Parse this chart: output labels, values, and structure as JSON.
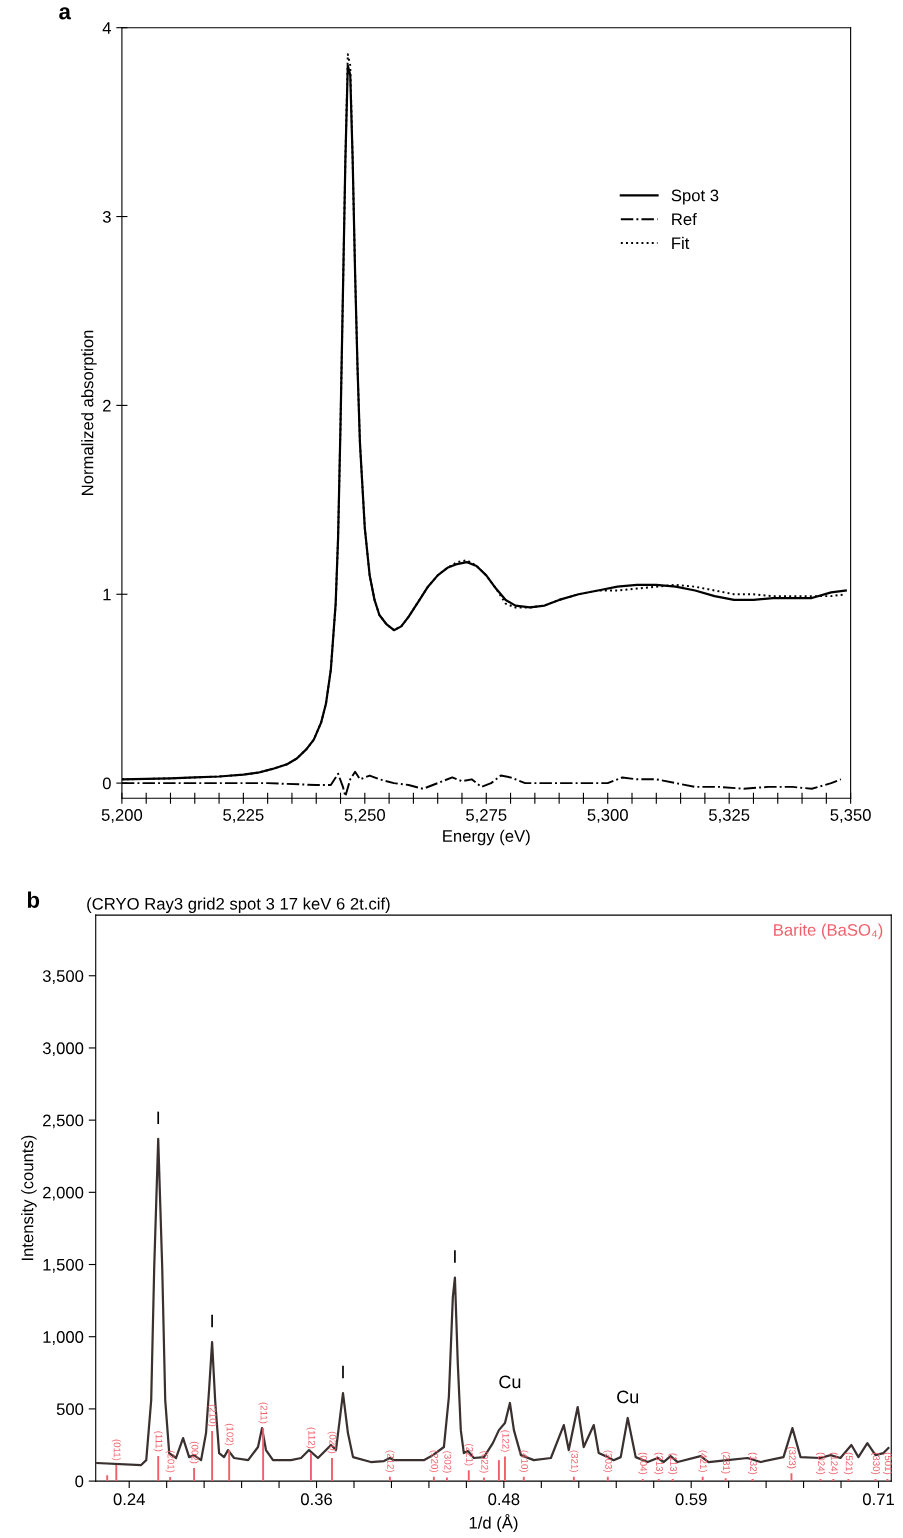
{
  "chart_data": [
    {
      "type": "line",
      "xlabel": "Energy (eV)",
      "ylabel": "Normalized absorption",
      "annotations": [
        "a"
      ],
      "xlim": [
        5200,
        5350
      ],
      "ylim": [
        -0.08,
        4
      ],
      "xticks": [
        {
          "value": 5200,
          "label": "5,200"
        },
        {
          "value": 5205,
          "label": null
        },
        {
          "value": 5210,
          "label": null
        },
        {
          "value": 5215,
          "label": null
        },
        {
          "value": 5220,
          "label": null
        },
        {
          "value": 5225,
          "label": "5,225"
        },
        {
          "value": 5230,
          "label": null
        },
        {
          "value": 5235,
          "label": null
        },
        {
          "value": 5240,
          "label": null
        },
        {
          "value": 5245,
          "label": null
        },
        {
          "value": 5250,
          "label": "5,250"
        },
        {
          "value": 5255,
          "label": null
        },
        {
          "value": 5260,
          "label": null
        },
        {
          "value": 5265,
          "label": null
        },
        {
          "value": 5270,
          "label": null
        },
        {
          "value": 5275,
          "label": "5,275"
        },
        {
          "value": 5280,
          "label": null
        },
        {
          "value": 5285,
          "label": null
        },
        {
          "value": 5290,
          "label": null
        },
        {
          "value": 5295,
          "label": null
        },
        {
          "value": 5300,
          "label": "5,300"
        },
        {
          "value": 5305,
          "label": null
        },
        {
          "value": 5310,
          "label": null
        },
        {
          "value": 5315,
          "label": null
        },
        {
          "value": 5320,
          "label": null
        },
        {
          "value": 5325,
          "label": "5,325"
        },
        {
          "value": 5330,
          "label": null
        },
        {
          "value": 5335,
          "label": null
        },
        {
          "value": 5340,
          "label": null
        },
        {
          "value": 5345,
          "label": null
        },
        {
          "value": 5350,
          "label": "5,350"
        }
      ],
      "yticks": [
        0,
        1,
        2,
        3,
        4
      ],
      "legend": "top right",
      "grid": false,
      "series": [
        {
          "name": "Spot 3",
          "color": "#000000",
          "line_style": "solid",
          "x": [
            5200,
            5205,
            5210,
            5215,
            5220,
            5225,
            5228,
            5231,
            5234,
            5236,
            5238,
            5239.5,
            5241,
            5242,
            5243,
            5244,
            5244.5,
            5245,
            5245.5,
            5246,
            5246.5,
            5247,
            5247.5,
            5248,
            5248.5,
            5249,
            5250,
            5251,
            5252,
            5253,
            5254.5,
            5256,
            5257.5,
            5259,
            5261,
            5263,
            5265,
            5267,
            5269,
            5271,
            5273,
            5275,
            5277,
            5279,
            5281,
            5284,
            5287,
            5290,
            5294,
            5298,
            5302,
            5306,
            5310,
            5314,
            5318,
            5322,
            5326,
            5330,
            5334,
            5338,
            5342,
            5346,
            5349
          ],
          "values": [
            0.02,
            0.022,
            0.025,
            0.03,
            0.035,
            0.045,
            0.055,
            0.075,
            0.1,
            0.13,
            0.18,
            0.23,
            0.32,
            0.42,
            0.6,
            0.95,
            1.3,
            1.9,
            2.6,
            3.3,
            3.8,
            3.75,
            3.3,
            2.7,
            2.2,
            1.8,
            1.35,
            1.1,
            0.97,
            0.89,
            0.84,
            0.81,
            0.83,
            0.88,
            0.96,
            1.04,
            1.1,
            1.14,
            1.16,
            1.17,
            1.15,
            1.1,
            1.03,
            0.97,
            0.94,
            0.93,
            0.94,
            0.97,
            1.0,
            1.02,
            1.04,
            1.05,
            1.05,
            1.04,
            1.02,
            0.99,
            0.97,
            0.97,
            0.98,
            0.98,
            0.98,
            1.01,
            1.02
          ]
        },
        {
          "name": "Ref",
          "color": "#000000",
          "line_style": "dashdot",
          "x": [
            5200,
            5210,
            5220,
            5230,
            5240,
            5243,
            5244.5,
            5245.5,
            5246,
            5247,
            5248,
            5249,
            5251,
            5253,
            5256,
            5259,
            5262,
            5265,
            5268,
            5270,
            5272,
            5274,
            5276,
            5278,
            5280,
            5283,
            5288,
            5294,
            5300,
            5303,
            5306,
            5310,
            5314,
            5318,
            5323,
            5328,
            5333,
            5338,
            5342,
            5346,
            5348
          ],
          "values": [
            0,
            0,
            0,
            0,
            -0.01,
            -0.01,
            0.05,
            -0.02,
            -0.07,
            0.02,
            0.06,
            0.02,
            0.04,
            0.02,
            0.0,
            -0.01,
            -0.03,
            0.0,
            0.03,
            0.01,
            0.02,
            -0.02,
            0.0,
            0.04,
            0.03,
            0.0,
            0.0,
            0.0,
            0.0,
            0.03,
            0.02,
            0.02,
            0.0,
            -0.02,
            -0.02,
            -0.03,
            -0.02,
            -0.02,
            -0.03,
            0.0,
            0.02
          ]
        },
        {
          "name": "Fit",
          "color": "#000000",
          "line_style": "dotted",
          "x": [
            5200,
            5205,
            5210,
            5215,
            5220,
            5225,
            5228,
            5231,
            5234,
            5236,
            5238,
            5239.5,
            5241,
            5242,
            5243,
            5244,
            5244.5,
            5245,
            5245.5,
            5246,
            5246.5,
            5247,
            5247.5,
            5248,
            5248.5,
            5249,
            5250,
            5251,
            5252,
            5253,
            5254.5,
            5256,
            5257.5,
            5259,
            5261,
            5263,
            5265,
            5267,
            5269,
            5271,
            5273,
            5275,
            5277,
            5279,
            5281,
            5284,
            5287,
            5290,
            5294,
            5298,
            5302,
            5306,
            5310,
            5314,
            5318,
            5322,
            5326,
            5330,
            5334,
            5338,
            5342,
            5346,
            5349
          ],
          "values": [
            0.02,
            0.022,
            0.025,
            0.03,
            0.035,
            0.045,
            0.055,
            0.075,
            0.1,
            0.13,
            0.18,
            0.23,
            0.32,
            0.42,
            0.6,
            0.95,
            1.3,
            1.9,
            2.6,
            3.3,
            3.86,
            3.8,
            3.3,
            2.7,
            2.2,
            1.8,
            1.35,
            1.1,
            0.97,
            0.89,
            0.84,
            0.81,
            0.83,
            0.88,
            0.96,
            1.04,
            1.1,
            1.14,
            1.17,
            1.18,
            1.15,
            1.1,
            1.03,
            0.95,
            0.93,
            0.93,
            0.94,
            0.97,
            1.0,
            1.02,
            1.02,
            1.03,
            1.04,
            1.05,
            1.04,
            1.02,
            1.0,
            1.0,
            0.99,
            0.99,
            0.99,
            0.99,
            1.0
          ]
        }
      ]
    },
    {
      "type": "line",
      "title": "(CRYO Ray3 grid2 spot 3 17 keV 6 2t.cif)",
      "xlabel": "1/d (Å)",
      "ylabel": "Intensity (counts)",
      "annotations": [
        "b",
        {
          "text": "I",
          "x": 0.2582,
          "y": 2370
        },
        {
          "text": "I",
          "x": 0.292,
          "y": 963
        },
        {
          "text": "I",
          "x": 0.3741,
          "y": 610
        },
        {
          "text": "I",
          "x": 0.4443,
          "y": 1410
        },
        {
          "text": "Cu",
          "x": 0.4788,
          "y": 541
        },
        {
          "text": "Cu",
          "x": 0.5527,
          "y": 437
        },
        {
          "text": "(011)",
          "x": 0.2319,
          "y": 111
        },
        {
          "text": "(111)",
          "x": 0.2582,
          "y": 173
        },
        {
          "text": "(201)",
          "x": 0.2657,
          "y": 28
        },
        {
          "text": "(002)",
          "x": 0.2807,
          "y": 90
        },
        {
          "text": "(210)",
          "x": 0.292,
          "y": 347
        },
        {
          "text": "(102)",
          "x": 0.3027,
          "y": 215
        },
        {
          "text": "(211)",
          "x": 0.324,
          "y": 367
        },
        {
          "text": "(112)",
          "x": 0.354,
          "y": 194
        },
        {
          "text": "(020)",
          "x": 0.3672,
          "y": 160
        },
        {
          "text": "(212)",
          "x": 0.4035,
          "y": 30
        },
        {
          "text": "(220)",
          "x": 0.4311,
          "y": 30
        },
        {
          "text": "(302)",
          "x": 0.4393,
          "y": 25
        },
        {
          "text": "(221)",
          "x": 0.453,
          "y": 75
        },
        {
          "text": "(022)",
          "x": 0.4625,
          "y": 25
        },
        {
          "text": "(122)",
          "x": 0.4757,
          "y": 170
        },
        {
          "text": "(410)",
          "x": 0.4875,
          "y": 30
        },
        {
          "text": "(321)",
          "x": 0.5189,
          "y": 30
        },
        {
          "text": "(303)",
          "x": 0.5402,
          "y": 30
        },
        {
          "text": "(004)",
          "x": 0.5621,
          "y": 15
        },
        {
          "text": "(313)",
          "x": 0.5721,
          "y": 15
        },
        {
          "text": "(113)",
          "x": 0.5809,
          "y": 15
        },
        {
          "text": "(421)",
          "x": 0.5997,
          "y": 30
        },
        {
          "text": "(231)",
          "x": 0.6141,
          "y": 20
        },
        {
          "text": "(132)",
          "x": 0.631,
          "y": 15
        },
        {
          "text": "(323)",
          "x": 0.6554,
          "y": 55
        },
        {
          "text": "(024)",
          "x": 0.6736,
          "y": 15
        },
        {
          "text": "(124)",
          "x": 0.6817,
          "y": 15
        },
        {
          "text": "(521)",
          "x": 0.6911,
          "y": 15
        },
        {
          "text": "(330)",
          "x": 0.7081,
          "y": 15
        },
        {
          "text": "(501)",
          "x": 0.7156,
          "y": 15
        }
      ],
      "xlim": [
        0.219,
        0.718
      ],
      "ylim": [
        0,
        3920
      ],
      "xticks": [
        {
          "value": 0.24,
          "label": "0.24"
        },
        {
          "value": 0.2635,
          "label": null
        },
        {
          "value": 0.287,
          "label": null
        },
        {
          "value": 0.3105,
          "label": null
        },
        {
          "value": 0.334,
          "label": null
        },
        {
          "value": 0.3575,
          "label": "0.36"
        },
        {
          "value": 0.381,
          "label": null
        },
        {
          "value": 0.4045,
          "label": null
        },
        {
          "value": 0.428,
          "label": null
        },
        {
          "value": 0.4515,
          "label": null
        },
        {
          "value": 0.475,
          "label": "0.48"
        },
        {
          "value": 0.4985,
          "label": null
        },
        {
          "value": 0.522,
          "label": null
        },
        {
          "value": 0.5455,
          "label": null
        },
        {
          "value": 0.569,
          "label": null
        },
        {
          "value": 0.5925,
          "label": "0.59"
        },
        {
          "value": 0.616,
          "label": null
        },
        {
          "value": 0.6395,
          "label": null
        },
        {
          "value": 0.663,
          "label": null
        },
        {
          "value": 0.6865,
          "label": null
        },
        {
          "value": 0.71,
          "label": "0.71"
        }
      ],
      "yticks": [
        0,
        500,
        {
          "value": 1000,
          "label": "1,000"
        },
        {
          "value": 1500,
          "label": "1,500"
        },
        {
          "value": 2000,
          "label": "2,000"
        },
        {
          "value": 2500,
          "label": "2,500"
        },
        {
          "value": 3000,
          "label": "3,000"
        },
        {
          "value": 3500,
          "label": "3,500"
        }
      ],
      "grid": false,
      "series": [
        {
          "type": "line",
          "color": "#3a3030",
          "line_style": "solid",
          "x": [
            0.22,
            0.2475,
            0.2507,
            0.2538,
            0.2557,
            0.2582,
            0.2607,
            0.2626,
            0.2651,
            0.2694,
            0.2738,
            0.2776,
            0.2807,
            0.2851,
            0.2882,
            0.2901,
            0.292,
            0.2939,
            0.2964,
            0.2995,
            0.302,
            0.3058,
            0.3146,
            0.3208,
            0.3233,
            0.3258,
            0.3302,
            0.3415,
            0.3478,
            0.3528,
            0.3584,
            0.3666,
            0.3697,
            0.3741,
            0.3772,
            0.3804,
            0.3916,
            0.3998,
            0.4035,
            0.406,
            0.4248,
            0.4305,
            0.4374,
            0.4405,
            0.443,
            0.4443,
            0.4461,
            0.448,
            0.4499,
            0.4524,
            0.4562,
            0.4625,
            0.4681,
            0.4719,
            0.4757,
            0.4788,
            0.4813,
            0.4857,
            0.4938,
            0.5045,
            0.5126,
            0.5157,
            0.5213,
            0.5251,
            0.5314,
            0.5345,
            0.5402,
            0.5439,
            0.5483,
            0.5527,
            0.5577,
            0.5652,
            0.5715,
            0.5752,
            0.5796,
            0.584,
            0.5984,
            0.6034,
            0.6153,
            0.6278,
            0.636,
            0.6504,
            0.656,
            0.6611,
            0.6736,
            0.6799,
            0.6861,
            0.693,
            0.6974,
            0.703,
            0.7081,
            0.7131,
            0.7162
          ],
          "values": [
            125,
            111,
            145,
            561,
            1483,
            2370,
            1483,
            561,
            194,
            160,
            298,
            166,
            180,
            145,
            333,
            631,
            963,
            561,
            194,
            166,
            215,
            160,
            145,
            236,
            367,
            215,
            145,
            145,
            160,
            215,
            160,
            250,
            215,
            610,
            333,
            166,
            132,
            139,
            160,
            145,
            145,
            180,
            236,
            582,
            1275,
            1410,
            818,
            353,
            194,
            208,
            160,
            166,
            263,
            353,
            402,
            541,
            353,
            180,
            145,
            160,
            388,
            215,
            513,
            236,
            388,
            194,
            166,
            145,
            166,
            437,
            166,
            132,
            160,
            132,
            173,
            132,
            173,
            132,
            145,
            160,
            132,
            166,
            367,
            166,
            160,
            180,
            160,
            250,
            166,
            263,
            180,
            194,
            229
          ]
        },
        {
          "type": "bar",
          "name": "Barite (BaSO₄)",
          "color": "#f0606a",
          "x": [
            0.2262,
            0.2319,
            0.2582,
            0.2657,
            0.2807,
            0.292,
            0.3027,
            0.324,
            0.354,
            0.3672,
            0.4035,
            0.4311,
            0.4393,
            0.453,
            0.4625,
            0.4719,
            0.4757,
            0.4875,
            0.5189,
            0.5402,
            0.5621,
            0.5721,
            0.5809,
            0.5997,
            0.6141,
            0.631,
            0.6554,
            0.6736,
            0.6817,
            0.6911,
            0.7081,
            0.7156
          ],
          "values": [
            40,
            111,
            173,
            28,
            90,
            347,
            215,
            367,
            194,
            160,
            30,
            30,
            25,
            75,
            25,
            145,
            170,
            30,
            30,
            30,
            15,
            15,
            15,
            30,
            20,
            15,
            55,
            15,
            15,
            15,
            15,
            15
          ]
        }
      ]
    }
  ]
}
